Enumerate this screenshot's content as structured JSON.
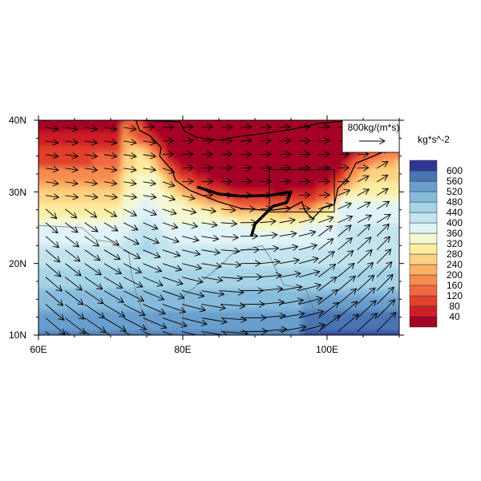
{
  "chart_data": {
    "type": "heatmap",
    "subtype": "filled-contour map with wind vectors",
    "x_range": [
      60,
      110
    ],
    "y_range": [
      10,
      40
    ],
    "x_ticks": [
      {
        "value": 60,
        "label": "60E"
      },
      {
        "value": 80,
        "label": "80E"
      },
      {
        "value": 100,
        "label": "100E"
      }
    ],
    "y_ticks": [
      {
        "value": 40,
        "label": "40N"
      },
      {
        "value": 30,
        "label": "30N"
      },
      {
        "value": 20,
        "label": "20N"
      },
      {
        "value": 10,
        "label": "10N"
      }
    ],
    "units_label": "kg*s^-2",
    "reference_vector": {
      "label": "800kg/(m*s)",
      "magnitude": 800
    },
    "colorbar": {
      "placement": "right",
      "levels": [
        40,
        80,
        120,
        160,
        200,
        240,
        280,
        320,
        360,
        400,
        440,
        480,
        520,
        560,
        600
      ],
      "labels": [
        "40",
        "80",
        "120",
        "160",
        "200",
        "240",
        "280",
        "320",
        "360",
        "400",
        "440",
        "480",
        "520",
        "560",
        "600"
      ],
      "colors": [
        "#a50026",
        "#cf1f26",
        "#e0402c",
        "#f26842",
        "#f88b50",
        "#fcb062",
        "#fdd282",
        "#fdeda0",
        "#f4f9d2",
        "#e0f3f8",
        "#c3e4ef",
        "#a6d4e7",
        "#88bbdb",
        "#6a9fcd",
        "#4874b4",
        "#313695"
      ]
    },
    "annotations": [
      "study box",
      "thick black line (terrain edge)",
      "plateau outline"
    ]
  }
}
